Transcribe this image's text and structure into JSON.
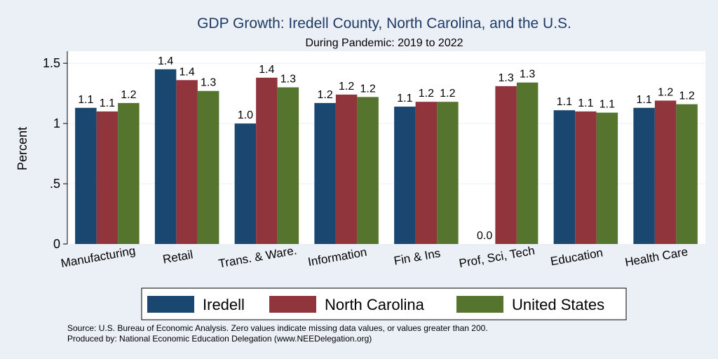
{
  "chart_data": {
    "type": "bar",
    "title": "GDP Growth: Iredell County, North Carolina, and the U.S.",
    "subtitle": "During Pandemic: 2019 to 2022",
    "ylabel": "Percent",
    "ylim": [
      0,
      1.6
    ],
    "yticks": [
      {
        "value": 0,
        "label": "0"
      },
      {
        "value": 0.5,
        "label": ".5"
      },
      {
        "value": 1,
        "label": "1"
      },
      {
        "value": 1.5,
        "label": "1.5"
      }
    ],
    "categories": [
      "Manufacturing",
      "Retail",
      "Trans. & Ware.",
      "Information",
      "Fin & Ins",
      "Prof, Sci, Tech",
      "Education",
      "Health Care"
    ],
    "series": [
      {
        "name": "Iredell",
        "color": "#1a476f",
        "values": [
          1.13,
          1.45,
          1.0,
          1.17,
          1.14,
          0.0,
          1.11,
          1.13
        ],
        "labels": [
          "1.1",
          "1.4",
          "1.0",
          "1.2",
          "1.1",
          "0.0",
          "1.1",
          "1.1"
        ]
      },
      {
        "name": "North Carolina",
        "color": "#90353b",
        "values": [
          1.1,
          1.36,
          1.38,
          1.24,
          1.18,
          1.31,
          1.1,
          1.19
        ],
        "labels": [
          "1.1",
          "1.4",
          "1.4",
          "1.2",
          "1.2",
          "1.3",
          "1.1",
          "1.2"
        ]
      },
      {
        "name": "United States",
        "color": "#55752f",
        "values": [
          1.17,
          1.27,
          1.3,
          1.22,
          1.18,
          1.34,
          1.09,
          1.16
        ],
        "labels": [
          "1.2",
          "1.3",
          "1.3",
          "1.2",
          "1.2",
          "1.3",
          "1.1",
          "1.2"
        ]
      }
    ],
    "grid": true,
    "legend": "bottom",
    "colors": {
      "background": "#eaf0f5",
      "plot_background": "#ffffff",
      "grid": "#eaf0f5",
      "title": "#1e3a66"
    }
  },
  "footnotes": {
    "source": "Source: U.S. Bureau of Economic Analysis. Zero values indicate missing data values, or values greater than 200.",
    "produced": "Produced by: National Economic Education Delegation (www.NEEDelegation.org)"
  }
}
